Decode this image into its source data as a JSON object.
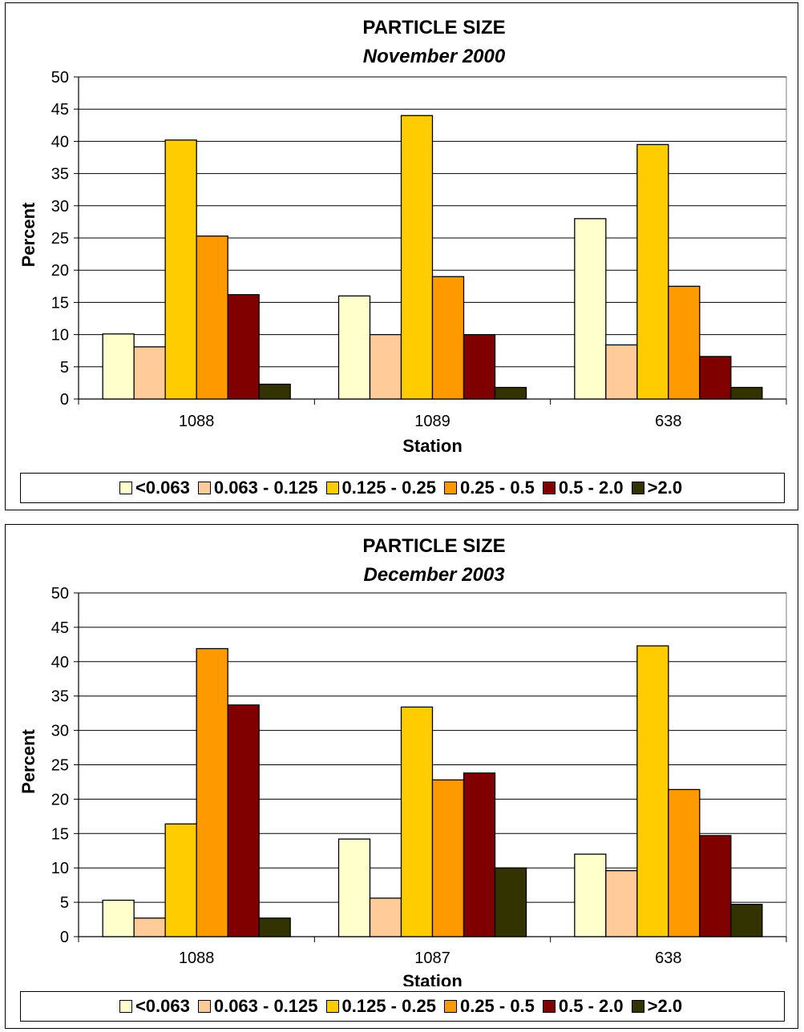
{
  "chart_data": [
    {
      "type": "bar",
      "title": "PARTICLE SIZE",
      "subtitle": "November 2000",
      "xlabel": "Station",
      "ylabel": "Percent",
      "ylim": [
        0,
        50
      ],
      "yticks": [
        0,
        5,
        10,
        15,
        20,
        25,
        30,
        35,
        40,
        45,
        50
      ],
      "grid": true,
      "legend_position": "bottom",
      "categories": [
        "1088",
        "1089",
        "638"
      ],
      "series": [
        {
          "name": "<0.063",
          "color": "#FFFFCC",
          "values": [
            10.1,
            16.0,
            28.0
          ]
        },
        {
          "name": "0.063 - 0.125",
          "color": "#FFCC99",
          "values": [
            8.1,
            10.0,
            8.4
          ]
        },
        {
          "name": "0.125 - 0.25",
          "color": "#FFCC00",
          "values": [
            40.2,
            44.0,
            39.5
          ]
        },
        {
          "name": "0.25 - 0.5",
          "color": "#FF9900",
          "values": [
            25.3,
            19.0,
            17.5
          ]
        },
        {
          "name": "0.5 - 2.0",
          "color": "#800000",
          "values": [
            16.2,
            10.0,
            6.6
          ]
        },
        {
          "name": ">2.0",
          "color": "#333300",
          "values": [
            2.3,
            1.8,
            1.8
          ]
        }
      ]
    },
    {
      "type": "bar",
      "title": "PARTICLE SIZE",
      "subtitle": "December 2003",
      "xlabel": "Station",
      "ylabel": "Percent",
      "ylim": [
        0,
        50
      ],
      "yticks": [
        0,
        5,
        10,
        15,
        20,
        25,
        30,
        35,
        40,
        45,
        50
      ],
      "grid": true,
      "legend_position": "bottom",
      "categories": [
        "1088",
        "1087",
        "638"
      ],
      "series": [
        {
          "name": "<0.063",
          "color": "#FFFFCC",
          "values": [
            5.3,
            14.2,
            12.0
          ]
        },
        {
          "name": "0.063 - 0.125",
          "color": "#FFCC99",
          "values": [
            2.7,
            5.6,
            9.6
          ]
        },
        {
          "name": "0.125 - 0.25",
          "color": "#FFCC00",
          "values": [
            16.4,
            33.4,
            42.3
          ]
        },
        {
          "name": "0.25 - 0.5",
          "color": "#FF9900",
          "values": [
            41.9,
            22.8,
            21.4
          ]
        },
        {
          "name": "0.5 - 2.0",
          "color": "#800000",
          "values": [
            33.7,
            23.8,
            14.7
          ]
        },
        {
          "name": ">2.0",
          "color": "#333300",
          "values": [
            2.7,
            10.0,
            4.7
          ]
        }
      ]
    }
  ]
}
